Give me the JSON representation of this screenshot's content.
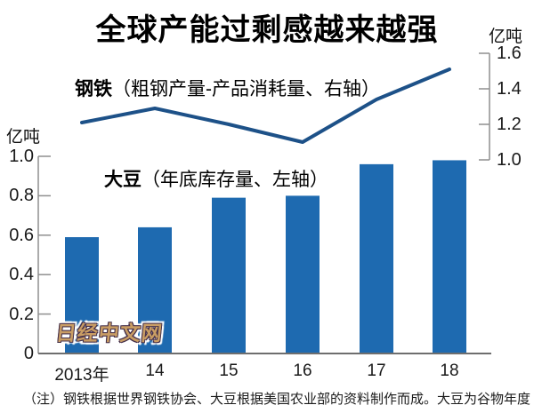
{
  "title": "全球产能过剩感越来越强",
  "axes": {
    "left_unit": "亿吨",
    "right_unit": "亿吨"
  },
  "series_labels": {
    "steel_name": "钢铁",
    "steel_desc": "（粗钢产量-产品消耗量、右轴）",
    "soy_name": "大豆",
    "soy_desc": "（年底库存量、左轴）"
  },
  "note": "（注）钢铁根据世界钢铁协会、大豆根据美国农业部的资料制作而成。大豆为谷物年度",
  "watermark": "日经中文网",
  "colors": {
    "bar": "#1e6ab0",
    "line": "#1d5188",
    "axis": "#8f8f8f",
    "baseline": "#6e6e6e"
  },
  "chart_data": {
    "type": "bar+line",
    "title": "全球产能过剩感越来越强",
    "categories": [
      "2013年",
      "14",
      "15",
      "16",
      "17",
      "18"
    ],
    "series": [
      {
        "name": "大豆（年底库存量、左轴）",
        "type": "bar",
        "axis": "left",
        "unit": "亿吨",
        "values": [
          0.59,
          0.64,
          0.79,
          0.8,
          0.96,
          0.98
        ]
      },
      {
        "name": "钢铁（粗钢产量-产品消耗量、右轴）",
        "type": "line",
        "axis": "right",
        "unit": "亿吨",
        "values": [
          1.21,
          1.29,
          1.2,
          1.1,
          1.34,
          1.51
        ]
      }
    ],
    "left_axis": {
      "label": "亿吨",
      "range": [
        0,
        1.0
      ],
      "ticks": [
        0,
        0.2,
        0.4,
        0.6,
        0.8,
        1.0
      ],
      "tick_labels": [
        "0",
        "0.2",
        "0.4",
        "0.6",
        "0.8",
        "1.0"
      ]
    },
    "right_axis": {
      "label": "亿吨",
      "range": [
        1.0,
        1.6
      ],
      "ticks": [
        1.0,
        1.2,
        1.4,
        1.6
      ],
      "tick_labels": [
        "1.0",
        "1.2",
        "1.4",
        "1.6"
      ]
    },
    "grid": false,
    "legend": "inline-series-labels"
  }
}
